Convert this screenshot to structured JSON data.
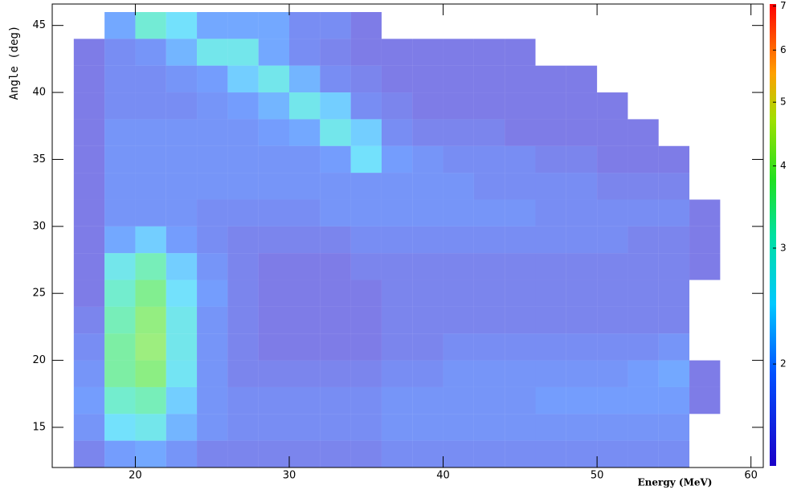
{
  "chart_data": {
    "type": "heatmap",
    "x_label": "Energy (MeV)",
    "y_label": "Angle (deg)",
    "xlim": [
      14.6,
      60.8
    ],
    "xticks": [
      20,
      30,
      40,
      50,
      60
    ],
    "ylim": [
      12,
      46.6
    ],
    "yticks": [
      15,
      20,
      25,
      30,
      35,
      40,
      45
    ],
    "zlim": [
      1.4,
      7.05
    ],
    "zticks": [
      2,
      3,
      4,
      5,
      6,
      7
    ],
    "zlog": true,
    "colorscale": [
      [
        0,
        "#1a00c8"
      ],
      [
        0.2,
        "#0050ff"
      ],
      [
        0.35,
        "#00c8ff"
      ],
      [
        0.5,
        "#00e0a0"
      ],
      [
        0.62,
        "#20e020"
      ],
      [
        0.75,
        "#a0e000"
      ],
      [
        0.85,
        "#ffa000"
      ],
      [
        1,
        "#ff0000"
      ]
    ],
    "x_bins": [
      16,
      18,
      20,
      22,
      24,
      26,
      28,
      30,
      32,
      34,
      36,
      38,
      40,
      42,
      44,
      46,
      48,
      50,
      52,
      54,
      56,
      58
    ],
    "y_bins": [
      46,
      44,
      42,
      40,
      38,
      36,
      34,
      32,
      30,
      28,
      26,
      24,
      22,
      20,
      18,
      16,
      14,
      12
    ],
    "z": [
      [
        null,
        2,
        3,
        2.5,
        2,
        2,
        2,
        1.7,
        1.7,
        1.5,
        null,
        null,
        null,
        null,
        null,
        null,
        null,
        null,
        null,
        null,
        null
      ],
      [
        1.5,
        1.7,
        1.8,
        2.1,
        2.7,
        2.7,
        2,
        1.7,
        1.6,
        1.5,
        1.5,
        1.5,
        1.5,
        1.5,
        1.5,
        null,
        null,
        null,
        null,
        null,
        null
      ],
      [
        1.5,
        1.7,
        1.7,
        1.8,
        1.9,
        2.3,
        2.7,
        2.1,
        1.7,
        1.6,
        1.5,
        1.5,
        1.5,
        1.5,
        1.5,
        1.5,
        1.5,
        null,
        null,
        null,
        null
      ],
      [
        1.5,
        1.7,
        1.7,
        1.7,
        1.8,
        1.9,
        2.1,
        2.7,
        2.3,
        1.7,
        1.6,
        1.5,
        1.5,
        1.5,
        1.5,
        1.5,
        1.5,
        1.5,
        null,
        null,
        null
      ],
      [
        1.5,
        1.8,
        1.8,
        1.8,
        1.8,
        1.8,
        1.9,
        2,
        2.7,
        2.3,
        1.7,
        1.6,
        1.6,
        1.6,
        1.5,
        1.5,
        1.5,
        1.5,
        1.5,
        null,
        null
      ],
      [
        1.5,
        1.8,
        1.8,
        1.8,
        1.8,
        1.8,
        1.8,
        1.8,
        1.9,
        2.5,
        1.9,
        1.8,
        1.7,
        1.7,
        1.7,
        1.6,
        1.6,
        1.5,
        1.5,
        1.5,
        null
      ],
      [
        1.5,
        1.8,
        1.8,
        1.8,
        1.8,
        1.8,
        1.8,
        1.8,
        1.8,
        1.8,
        1.8,
        1.8,
        1.8,
        1.7,
        1.7,
        1.7,
        1.7,
        1.6,
        1.6,
        1.6,
        null
      ],
      [
        1.5,
        1.8,
        1.8,
        1.8,
        1.7,
        1.7,
        1.7,
        1.7,
        1.8,
        1.8,
        1.8,
        1.8,
        1.8,
        1.8,
        1.8,
        1.7,
        1.7,
        1.7,
        1.7,
        1.7,
        1.5
      ],
      [
        1.5,
        2,
        2.3,
        1.9,
        1.7,
        1.6,
        1.6,
        1.6,
        1.6,
        1.7,
        1.7,
        1.7,
        1.7,
        1.7,
        1.7,
        1.7,
        1.7,
        1.7,
        1.6,
        1.6,
        1.5
      ],
      [
        1.5,
        2.7,
        3.3,
        2.3,
        1.8,
        1.6,
        1.5,
        1.5,
        1.5,
        1.6,
        1.6,
        1.6,
        1.6,
        1.6,
        1.6,
        1.6,
        1.6,
        1.6,
        1.6,
        1.6,
        1.5
      ],
      [
        1.5,
        3.1,
        3.7,
        2.5,
        1.9,
        1.6,
        1.5,
        1.5,
        1.5,
        1.5,
        1.6,
        1.6,
        1.6,
        1.6,
        1.6,
        1.6,
        1.6,
        1.6,
        1.6,
        1.6,
        null
      ],
      [
        1.6,
        3.3,
        4,
        2.7,
        1.8,
        1.6,
        1.5,
        1.5,
        1.5,
        1.5,
        1.6,
        1.6,
        1.6,
        1.6,
        1.6,
        1.6,
        1.6,
        1.6,
        1.6,
        1.6,
        null
      ],
      [
        1.7,
        3.5,
        4.1,
        2.7,
        1.8,
        1.6,
        1.5,
        1.5,
        1.5,
        1.5,
        1.6,
        1.6,
        1.7,
        1.7,
        1.7,
        1.7,
        1.7,
        1.7,
        1.7,
        1.8,
        null
      ],
      [
        1.8,
        3.5,
        3.9,
        2.6,
        1.8,
        1.6,
        1.6,
        1.6,
        1.6,
        1.6,
        1.7,
        1.7,
        1.8,
        1.8,
        1.8,
        1.8,
        1.8,
        1.8,
        1.9,
        2,
        1.5
      ],
      [
        1.9,
        3.1,
        3.3,
        2.3,
        1.8,
        1.7,
        1.7,
        1.7,
        1.7,
        1.7,
        1.8,
        1.8,
        1.8,
        1.8,
        1.8,
        1.9,
        1.9,
        1.9,
        1.9,
        1.9,
        1.5
      ],
      [
        1.8,
        2.5,
        2.7,
        2.1,
        1.8,
        1.7,
        1.7,
        1.7,
        1.7,
        1.7,
        1.8,
        1.8,
        1.8,
        1.8,
        1.8,
        1.8,
        1.8,
        1.8,
        1.8,
        1.8,
        null
      ],
      [
        1.6,
        1.9,
        2,
        1.8,
        1.6,
        1.6,
        1.6,
        1.6,
        1.6,
        1.6,
        1.7,
        1.7,
        1.7,
        1.7,
        1.7,
        1.7,
        1.7,
        1.7,
        1.7,
        1.7,
        null
      ]
    ]
  }
}
